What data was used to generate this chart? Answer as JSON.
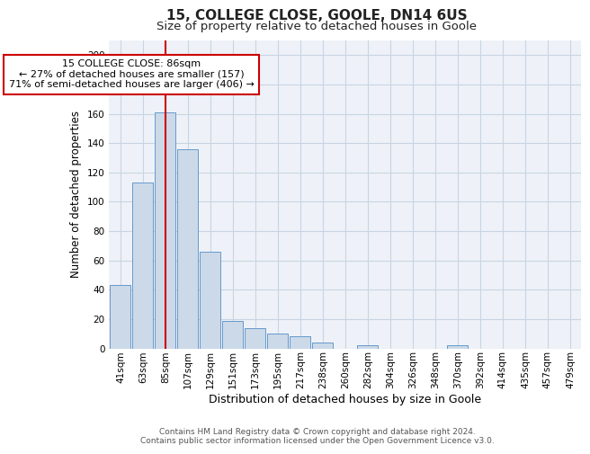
{
  "title1": "15, COLLEGE CLOSE, GOOLE, DN14 6US",
  "title2": "Size of property relative to detached houses in Goole",
  "xlabel": "Distribution of detached houses by size in Goole",
  "ylabel": "Number of detached properties",
  "bar_labels": [
    "41sqm",
    "63sqm",
    "85sqm",
    "107sqm",
    "129sqm",
    "151sqm",
    "173sqm",
    "195sqm",
    "217sqm",
    "238sqm",
    "260sqm",
    "282sqm",
    "304sqm",
    "326sqm",
    "348sqm",
    "370sqm",
    "392sqm",
    "414sqm",
    "435sqm",
    "457sqm",
    "479sqm"
  ],
  "bar_values": [
    43,
    113,
    161,
    136,
    66,
    19,
    14,
    10,
    8,
    4,
    0,
    2,
    0,
    0,
    0,
    2,
    0,
    0,
    0,
    0,
    0
  ],
  "bar_color": "#ccd9e8",
  "bar_edge_color": "#6699cc",
  "annotation_box_text": "15 COLLEGE CLOSE: 86sqm\n← 27% of detached houses are smaller (157)\n71% of semi-detached houses are larger (406) →",
  "annotation_box_color": "#ffffff",
  "annotation_box_edge_color": "#cc0000",
  "vline_color": "#cc0000",
  "vline_x_index": 2,
  "ylim": [
    0,
    210
  ],
  "yticks": [
    0,
    20,
    40,
    60,
    80,
    100,
    120,
    140,
    160,
    180,
    200
  ],
  "grid_color": "#c8d4e4",
  "background_color": "#eef2f8",
  "footer_text": "Contains HM Land Registry data © Crown copyright and database right 2024.\nContains public sector information licensed under the Open Government Licence v3.0.",
  "title1_fontsize": 11,
  "title2_fontsize": 9.5,
  "xlabel_fontsize": 9,
  "ylabel_fontsize": 8.5,
  "tick_fontsize": 7.5,
  "annotation_fontsize": 8,
  "footer_fontsize": 6.5
}
